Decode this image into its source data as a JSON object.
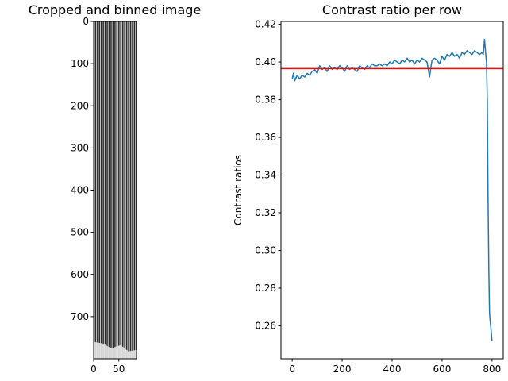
{
  "chart_data": [
    {
      "type": "heatmap",
      "title": "Cropped and binned image",
      "xlabel": "",
      "ylabel": "",
      "xlim": [
        0,
        100
      ],
      "ylim": [
        800,
        0
      ],
      "x_ticks": [
        0,
        50
      ],
      "y_ticks": [
        0,
        100,
        200,
        300,
        400,
        500,
        600,
        700
      ],
      "stripe_count": 22,
      "colormap": "gray"
    },
    {
      "type": "line",
      "title": "Contrast ratio per row",
      "xlabel": "",
      "ylabel": "Contrast ratios",
      "xlim": [
        -45,
        845
      ],
      "ylim": [
        0.2425,
        0.4215
      ],
      "x_ticks": [
        0,
        200,
        400,
        600,
        800
      ],
      "y_ticks": [
        0.26,
        0.28,
        0.3,
        0.32,
        0.34,
        0.36,
        0.38,
        0.4,
        0.42
      ],
      "grid": false,
      "series": [
        {
          "color": "#1f77b4",
          "x": [
            0,
            5,
            10,
            20,
            30,
            40,
            50,
            60,
            70,
            80,
            90,
            100,
            110,
            120,
            130,
            140,
            150,
            160,
            170,
            180,
            190,
            200,
            210,
            220,
            230,
            240,
            250,
            260,
            270,
            280,
            290,
            300,
            310,
            320,
            330,
            340,
            350,
            360,
            370,
            380,
            390,
            400,
            410,
            420,
            430,
            440,
            450,
            460,
            470,
            480,
            490,
            500,
            510,
            520,
            530,
            540,
            545,
            550,
            555,
            560,
            570,
            580,
            590,
            600,
            610,
            620,
            630,
            640,
            650,
            660,
            670,
            680,
            690,
            700,
            710,
            720,
            730,
            740,
            750,
            760,
            765,
            770,
            775,
            778,
            781,
            784,
            787,
            790,
            793,
            796,
            800
          ],
          "values": [
            0.391,
            0.394,
            0.39,
            0.393,
            0.391,
            0.393,
            0.392,
            0.394,
            0.393,
            0.395,
            0.396,
            0.394,
            0.398,
            0.396,
            0.397,
            0.395,
            0.398,
            0.396,
            0.397,
            0.396,
            0.398,
            0.397,
            0.395,
            0.398,
            0.396,
            0.397,
            0.396,
            0.395,
            0.398,
            0.397,
            0.396,
            0.398,
            0.397,
            0.399,
            0.398,
            0.398,
            0.399,
            0.398,
            0.399,
            0.398,
            0.4,
            0.399,
            0.401,
            0.4,
            0.399,
            0.401,
            0.4,
            0.402,
            0.4,
            0.401,
            0.399,
            0.401,
            0.4,
            0.402,
            0.401,
            0.4,
            0.396,
            0.392,
            0.397,
            0.401,
            0.402,
            0.401,
            0.399,
            0.403,
            0.401,
            0.404,
            0.403,
            0.405,
            0.403,
            0.404,
            0.402,
            0.405,
            0.404,
            0.406,
            0.405,
            0.404,
            0.406,
            0.405,
            0.404,
            0.405,
            0.404,
            0.412,
            0.404,
            0.4,
            0.38,
            0.33,
            0.29,
            0.267,
            0.262,
            0.258,
            0.252
          ]
        }
      ],
      "reference_line": {
        "y": 0.3965,
        "color": "#ff0000"
      }
    }
  ]
}
